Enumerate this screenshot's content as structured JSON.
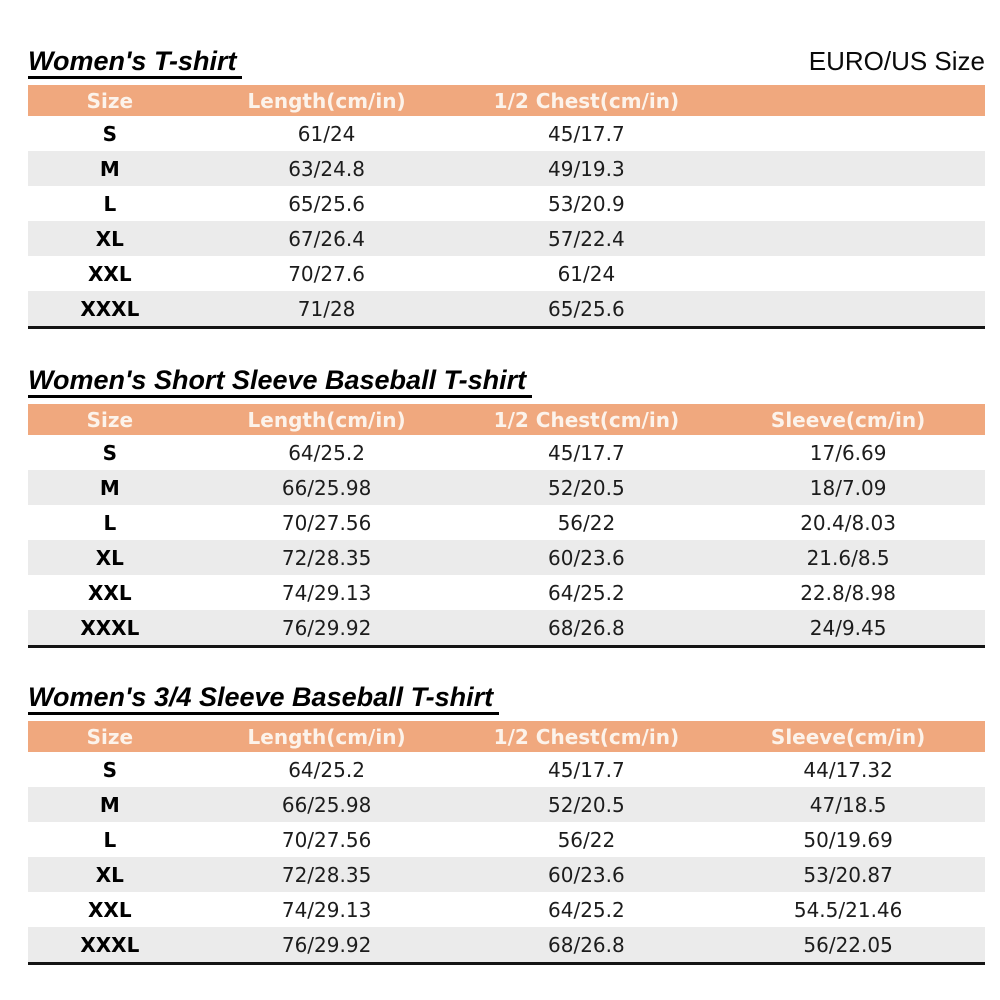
{
  "header": {
    "euro_us_label": "EURO/US Size"
  },
  "colors": {
    "header_bg": "#F0A87E",
    "header_text": "#FCF3EB",
    "row_alt_bg": "#EBEBEB",
    "bottom_border": "#141414",
    "title_text": "#000000"
  },
  "tables": [
    {
      "title": "Women's T-shirt",
      "columns": [
        "Size",
        "Length(cm/in)",
        "1/2 Chest(cm/in)",
        ""
      ],
      "rows": [
        [
          "S",
          "61/24",
          "45/17.7",
          ""
        ],
        [
          "M",
          "63/24.8",
          "49/19.3",
          ""
        ],
        [
          "L",
          "65/25.6",
          "53/20.9",
          ""
        ],
        [
          "XL",
          "67/26.4",
          "57/22.4",
          ""
        ],
        [
          "XXL",
          "70/27.6",
          "61/24",
          ""
        ],
        [
          "XXXL",
          "71/28",
          "65/25.6",
          ""
        ]
      ]
    },
    {
      "title": "Women's Short Sleeve Baseball T-shirt",
      "columns": [
        "Size",
        "Length(cm/in)",
        "1/2 Chest(cm/in)",
        "Sleeve(cm/in)"
      ],
      "rows": [
        [
          "S",
          "64/25.2",
          "45/17.7",
          "17/6.69"
        ],
        [
          "M",
          "66/25.98",
          "52/20.5",
          "18/7.09"
        ],
        [
          "L",
          "70/27.56",
          "56/22",
          "20.4/8.03"
        ],
        [
          "XL",
          "72/28.35",
          "60/23.6",
          "21.6/8.5"
        ],
        [
          "XXL",
          "74/29.13",
          "64/25.2",
          "22.8/8.98"
        ],
        [
          "XXXL",
          "76/29.92",
          "68/26.8",
          "24/9.45"
        ]
      ]
    },
    {
      "title": "Women's 3/4 Sleeve Baseball T-shirt",
      "columns": [
        "Size",
        "Length(cm/in)",
        "1/2 Chest(cm/in)",
        "Sleeve(cm/in)"
      ],
      "rows": [
        [
          "S",
          "64/25.2",
          "45/17.7",
          "44/17.32"
        ],
        [
          "M",
          "66/25.98",
          "52/20.5",
          "47/18.5"
        ],
        [
          "L",
          "70/27.56",
          "56/22",
          "50/19.69"
        ],
        [
          "XL",
          "72/28.35",
          "60/23.6",
          "53/20.87"
        ],
        [
          "XXL",
          "74/29.13",
          "64/25.2",
          "54.5/21.46"
        ],
        [
          "XXXL",
          "76/29.92",
          "68/26.8",
          "56/22.05"
        ]
      ]
    }
  ]
}
